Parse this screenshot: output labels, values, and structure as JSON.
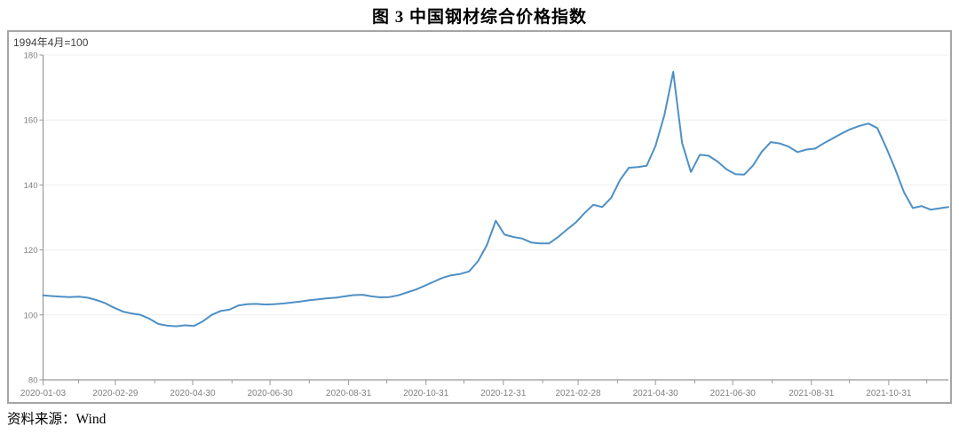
{
  "figure": {
    "title": "图 3  中国钢材综合价格指数",
    "source": {
      "label": "资料来源：",
      "value": "Wind"
    }
  },
  "chart_data": {
    "type": "line",
    "title": "图 3  中国钢材综合价格指数",
    "subtitle": "1994年4月=100",
    "xlabel": "",
    "ylabel": "",
    "ylim": [
      80,
      180
    ],
    "yticks": [
      80,
      100,
      120,
      140,
      160,
      180
    ],
    "grid": "horizontal-only",
    "legend": "none",
    "xticks_labeled": [
      "2020-01-03",
      "2020-02-29",
      "2020-04-30",
      "2020-06-30",
      "2020-08-31",
      "2020-10-31",
      "2020-12-31",
      "2021-02-28",
      "2021-04-30",
      "2021-06-30",
      "2021-08-31",
      "2021-10-31"
    ],
    "xticks_minor": [
      "2020-01-31",
      "2020-03-31",
      "2020-05-31",
      "2020-07-31",
      "2020-09-30",
      "2020-11-30",
      "2021-01-31",
      "2021-03-31",
      "2021-05-31",
      "2021-07-31",
      "2021-09-30",
      "2021-11-30"
    ],
    "series": [
      {
        "name": "中国钢材综合价格指数",
        "color": "#4e90c5",
        "dates": [
          "2020-01-03",
          "2020-01-10",
          "2020-01-17",
          "2020-01-24",
          "2020-01-31",
          "2020-02-07",
          "2020-02-14",
          "2020-02-21",
          "2020-02-28",
          "2020-03-06",
          "2020-03-13",
          "2020-03-20",
          "2020-03-27",
          "2020-04-03",
          "2020-04-10",
          "2020-04-17",
          "2020-04-24",
          "2020-05-01",
          "2020-05-08",
          "2020-05-15",
          "2020-05-22",
          "2020-05-29",
          "2020-06-05",
          "2020-06-12",
          "2020-06-19",
          "2020-06-26",
          "2020-07-03",
          "2020-07-10",
          "2020-07-17",
          "2020-07-24",
          "2020-07-31",
          "2020-08-07",
          "2020-08-14",
          "2020-08-21",
          "2020-08-28",
          "2020-09-04",
          "2020-09-11",
          "2020-09-18",
          "2020-09-25",
          "2020-10-02",
          "2020-10-09",
          "2020-10-16",
          "2020-10-23",
          "2020-10-30",
          "2020-11-06",
          "2020-11-13",
          "2020-11-20",
          "2020-11-27",
          "2020-12-04",
          "2020-12-11",
          "2020-12-18",
          "2020-12-25",
          "2021-01-01",
          "2021-01-08",
          "2021-01-15",
          "2021-01-22",
          "2021-01-29",
          "2021-02-05",
          "2021-02-12",
          "2021-02-19",
          "2021-02-26",
          "2021-03-05",
          "2021-03-12",
          "2021-03-19",
          "2021-03-26",
          "2021-04-02",
          "2021-04-09",
          "2021-04-16",
          "2021-04-23",
          "2021-04-30",
          "2021-05-07",
          "2021-05-14",
          "2021-05-21",
          "2021-05-28",
          "2021-06-04",
          "2021-06-11",
          "2021-06-18",
          "2021-06-25",
          "2021-07-02",
          "2021-07-09",
          "2021-07-16",
          "2021-07-23",
          "2021-07-30",
          "2021-08-06",
          "2021-08-13",
          "2021-08-20",
          "2021-08-27",
          "2021-09-03",
          "2021-09-10",
          "2021-09-17",
          "2021-09-24",
          "2021-10-01",
          "2021-10-08",
          "2021-10-15",
          "2021-10-22",
          "2021-10-29",
          "2021-11-05",
          "2021-11-12",
          "2021-11-19",
          "2021-11-26",
          "2021-12-03",
          "2021-12-10",
          "2021-12-17"
        ],
        "values": [
          106.0,
          105.8,
          105.6,
          105.5,
          105.6,
          105.3,
          104.6,
          103.6,
          102.2,
          101.0,
          100.4,
          100.0,
          98.8,
          97.2,
          96.7,
          96.5,
          96.8,
          96.6,
          98.0,
          100.0,
          101.2,
          101.6,
          102.9,
          103.3,
          103.4,
          103.2,
          103.3,
          103.5,
          103.8,
          104.1,
          104.5,
          104.8,
          105.1,
          105.3,
          105.7,
          106.1,
          106.2,
          105.7,
          105.4,
          105.5,
          106.0,
          106.9,
          107.8,
          109.0,
          110.2,
          111.4,
          112.2,
          112.6,
          113.4,
          116.5,
          121.5,
          129.0,
          124.7,
          124.0,
          123.5,
          122.3,
          122.0,
          122.0,
          123.9,
          126.2,
          128.4,
          131.3,
          133.9,
          133.2,
          136.0,
          141.5,
          145.3,
          145.5,
          145.9,
          152.0,
          161.5,
          174.8,
          153.0,
          144.0,
          149.3,
          149.0,
          147.2,
          144.8,
          143.3,
          143.2,
          146.0,
          150.3,
          153.2,
          152.8,
          151.8,
          150.1,
          150.9,
          151.2,
          152.9,
          154.4,
          155.9,
          157.2,
          158.2,
          158.9,
          157.5,
          151.5,
          145.0,
          137.8,
          132.9,
          133.5,
          132.4,
          132.8,
          133.2
        ]
      }
    ],
    "style": {
      "axis_color": "#999999",
      "grid_color": "#ededed",
      "tick_label_color": "#808080",
      "panel_border_color": "#a5a5a5",
      "subtitle_color": "#404040"
    }
  }
}
